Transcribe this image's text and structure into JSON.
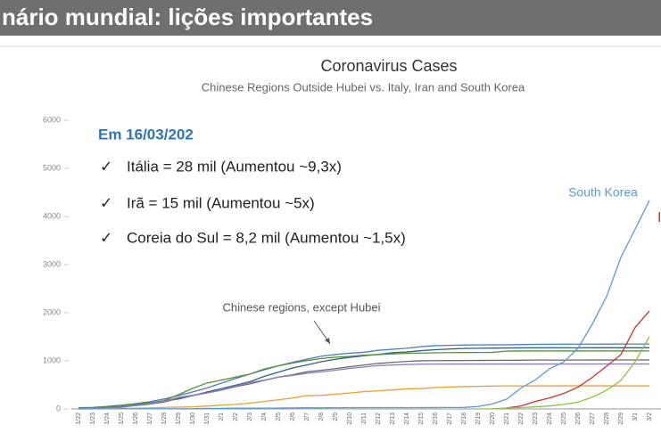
{
  "header": {
    "title": "nário mundial: lições importantes"
  },
  "note_box": {
    "heading": "Em 16/03/202",
    "items": [
      "Itália = 28 mil (Aumentou ~9,3x)",
      "Irã = 15 mil (Aumentou ~5x)",
      "Coreia do Sul = 8,2 mil (Aumentou ~1,5x)"
    ]
  },
  "chart_data": {
    "type": "line",
    "title": "Coronavirus Cases",
    "subtitle": "Chinese Regions Outside Hubei vs. Italy, Iran and South Korea",
    "categories": [
      "1/22",
      "1/23",
      "1/24",
      "1/25",
      "1/26",
      "1/27",
      "1/28",
      "1/29",
      "1/30",
      "1/31",
      "2/1",
      "2/2",
      "2/3",
      "2/4",
      "2/5",
      "2/6",
      "2/7",
      "2/8",
      "2/9",
      "2/10",
      "2/11",
      "2/12",
      "2/13",
      "2/14",
      "2/15",
      "2/16",
      "2/17",
      "2/18",
      "2/19",
      "2/20",
      "2/21",
      "2/22",
      "2/23",
      "2/24",
      "2/25",
      "2/26",
      "2/27",
      "2/28",
      "2/29",
      "3/1",
      "3/2"
    ],
    "ylim": [
      0,
      6000
    ],
    "yticks": [
      0,
      1000,
      2000,
      3000,
      4000,
      5000,
      6000
    ],
    "grid": false,
    "annotations": [
      {
        "text": "Chinese regions, except Hubei"
      },
      {
        "text": "South Korea",
        "color": "#5b9bd5"
      },
      {
        "text": "I",
        "color": "#c0392b"
      }
    ],
    "series": [
      {
        "color": "#4a7fb5",
        "values": [
          26,
          32,
          53,
          78,
          111,
          151,
          207,
          277,
          354,
          436,
          535,
          632,
          725,
          813,
          895,
          970,
          1034,
          1095,
          1131,
          1159,
          1177,
          1219,
          1241,
          1261,
          1294,
          1316,
          1322,
          1328,
          1331,
          1332,
          1333,
          1339,
          1342,
          1345,
          1347,
          1347,
          1347,
          1348,
          1349,
          1349,
          1350
        ]
      },
      {
        "color": "#2f5f8a",
        "values": [
          5,
          5,
          9,
          32,
          83,
          128,
          168,
          206,
          278,
          352,
          422,
          493,
          566,
          675,
          764,
          851,
          914,
          981,
          1033,
          1073,
          1105,
          1135,
          1169,
          1184,
          1212,
          1231,
          1246,
          1257,
          1262,
          1265,
          1267,
          1270,
          1271,
          1271,
          1271,
          1271,
          1272,
          1272,
          1272,
          1272,
          1272
        ]
      },
      {
        "color": "#5a8f3a",
        "values": [
          10,
          27,
          43,
          62,
          104,
          128,
          173,
          296,
          428,
          538,
          599,
          661,
          724,
          829,
          895,
          954,
          1006,
          1048,
          1075,
          1092,
          1117,
          1131,
          1145,
          1155,
          1162,
          1167,
          1171,
          1172,
          1173,
          1175,
          1203,
          1205,
          1205,
          1205,
          1205,
          1205,
          1205,
          1205,
          1205,
          1205,
          1206
        ]
      },
      {
        "color": "#6b6b6b",
        "values": [
          4,
          9,
          24,
          43,
          69,
          100,
          143,
          221,
          277,
          332,
          389,
          463,
          521,
          593,
          661,
          711,
          772,
          803,
          838,
          879,
          912,
          946,
          968,
          988,
          1001,
          1004,
          1006,
          1007,
          1008,
          1010,
          1011,
          1013,
          1016,
          1016,
          1016,
          1016,
          1017,
          1017,
          1018,
          1018,
          1018
        ]
      },
      {
        "color": "#8e7cc3",
        "values": [
          2,
          7,
          18,
          33,
          72,
          109,
          162,
          240,
          286,
          333,
          391,
          476,
          548,
          600,
          661,
          698,
          740,
          771,
          804,
          844,
          872,
          900,
          913,
          925,
          930,
          933,
          934,
          934,
          934,
          934,
          934,
          934,
          934,
          934,
          935,
          935,
          935,
          935,
          935,
          935,
          935
        ]
      },
      {
        "color": "#e6a23c",
        "values": [
          0,
          2,
          4,
          9,
          15,
          21,
          33,
          38,
          44,
          59,
          80,
          95,
          121,
          155,
          190,
          227,
          277,
          282,
          307,
          331,
          360,
          378,
          395,
          418,
          425,
          445,
          457,
          464,
          470,
          476,
          479,
          479,
          480,
          480,
          480,
          480,
          480,
          480,
          480,
          480,
          480
        ]
      },
      {
        "color": "#5b9bd5",
        "values": [
          1,
          1,
          2,
          2,
          3,
          4,
          4,
          4,
          4,
          11,
          12,
          15,
          15,
          16,
          19,
          23,
          24,
          24,
          25,
          27,
          28,
          28,
          28,
          28,
          28,
          29,
          30,
          31,
          51,
          104,
          204,
          433,
          602,
          833,
          977,
          1261,
          1766,
          2337,
          3150,
          3736,
          4335
        ]
      },
      {
        "color": "#c0392b",
        "values": [
          null,
          null,
          null,
          null,
          null,
          null,
          null,
          null,
          null,
          null,
          null,
          null,
          null,
          null,
          null,
          null,
          null,
          null,
          null,
          null,
          null,
          null,
          null,
          null,
          null,
          null,
          null,
          null,
          null,
          null,
          20,
          62,
          155,
          229,
          322,
          453,
          655,
          888,
          1128,
          1694,
          2036
        ]
      },
      {
        "color": "#8bc34a",
        "values": [
          null,
          null,
          null,
          null,
          null,
          null,
          null,
          null,
          null,
          null,
          null,
          null,
          null,
          null,
          null,
          null,
          null,
          null,
          null,
          null,
          null,
          null,
          null,
          null,
          null,
          null,
          null,
          null,
          2,
          5,
          18,
          28,
          43,
          61,
          95,
          139,
          245,
          388,
          593,
          978,
          1501
        ]
      }
    ]
  }
}
